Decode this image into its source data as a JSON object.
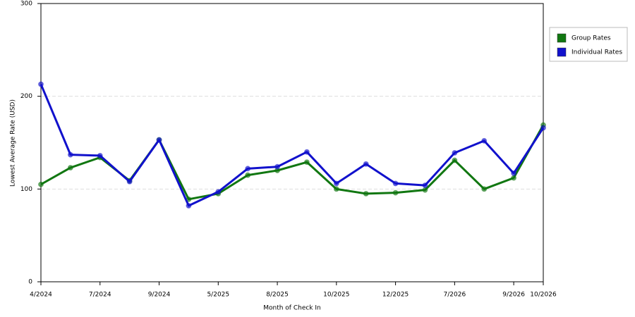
{
  "chart_data": {
    "type": "line",
    "x_label": "Month of Check In",
    "y_label": "Lowest Average Rate (USD)",
    "categories": [
      "4/2024",
      null,
      "7/2024",
      null,
      "9/2024",
      null,
      "5/2025",
      null,
      "8/2025",
      null,
      "10/2025",
      null,
      "12/2025",
      null,
      "7/2026",
      null,
      "9/2026",
      "10/2026"
    ],
    "series": [
      {
        "name": "Group Rates",
        "color": "#117711",
        "values": [
          105,
          123,
          134,
          109,
          153,
          89,
          95,
          115,
          120,
          129,
          100,
          95,
          96,
          99,
          131,
          100,
          112,
          169
        ]
      },
      {
        "name": "Individual Rates",
        "color": "#1111cc",
        "values": [
          213,
          137,
          136,
          108,
          153,
          82,
          97,
          122,
          124,
          140,
          106,
          127,
          106,
          104,
          139,
          152,
          117,
          166
        ]
      }
    ],
    "ylim": [
      0,
      300
    ],
    "yticks": [
      0,
      100,
      200,
      300
    ],
    "grid": true,
    "legend": "right"
  }
}
